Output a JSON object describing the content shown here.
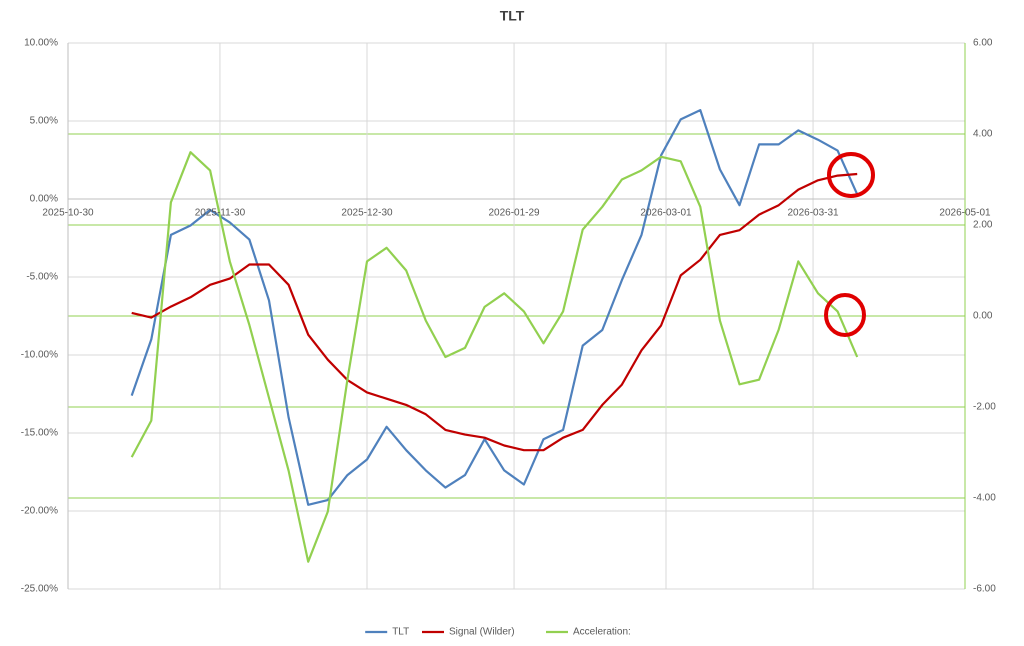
{
  "chart_data": {
    "type": "line",
    "title": "TLT",
    "x": [
      "2025-11-12",
      "2025-11-16",
      "2025-11-20",
      "2025-11-24",
      "2025-11-28",
      "2025-12-02",
      "2025-12-06",
      "2025-12-10",
      "2025-12-14",
      "2025-12-18",
      "2025-12-22",
      "2025-12-26",
      "2025-12-30",
      "2026-01-03",
      "2026-01-07",
      "2026-01-11",
      "2026-01-15",
      "2026-01-19",
      "2026-01-23",
      "2026-01-27",
      "2026-01-31",
      "2026-02-04",
      "2026-02-08",
      "2026-02-12",
      "2026-02-16",
      "2026-02-20",
      "2026-02-24",
      "2026-02-28",
      "2026-03-04",
      "2026-03-08",
      "2026-03-12",
      "2026-03-16",
      "2026-03-20",
      "2026-03-24",
      "2026-03-28",
      "2026-04-01",
      "2026-04-05",
      "2026-04-09"
    ],
    "series": [
      {
        "name": "TLT",
        "color": "#4f81bd",
        "values": [
          -12.6,
          -9,
          -2.3,
          -1.7,
          -0.7,
          -1.5,
          -2.6,
          -6.5,
          -14,
          -19.6,
          -19.3,
          -17.7,
          -16.7,
          -14.6,
          -16.1,
          -17.4,
          -18.5,
          -17.7,
          -15.4,
          -17.4,
          -18.3,
          -15.4,
          -14.8,
          -9.4,
          -8.4,
          -5.2,
          -2.3,
          2.8,
          5.1,
          5.7,
          1.9,
          -0.4,
          3.5,
          3.5,
          4.4,
          3.8,
          3.1,
          0.3
        ]
      },
      {
        "name": "Signal (Wilder)",
        "color": "#c00000",
        "values": [
          -7.3,
          -7.6,
          -6.9,
          -6.3,
          -5.5,
          -5.1,
          -4.2,
          -4.2,
          -5.5,
          -8.7,
          -10.3,
          -11.6,
          -12.4,
          -12.8,
          -13.2,
          -13.8,
          -14.8,
          -15.1,
          -15.3,
          -15.8,
          -16.1,
          -16.1,
          -15.3,
          -14.8,
          -13.2,
          -11.9,
          -9.7,
          -8.1,
          -4.9,
          -3.9,
          -2.3,
          -2,
          -1,
          -0.4,
          0.6,
          1.2,
          1.5,
          1.6
        ]
      },
      {
        "name": "Acceleration:",
        "color": "#92d050",
        "axis": "y2",
        "values": [
          -3.1,
          -2.3,
          2.5,
          3.6,
          3.2,
          1.2,
          -0.2,
          -1.8,
          -3.4,
          -5.4,
          -4.3,
          -1.4,
          1.2,
          1.5,
          1,
          -0.1,
          -0.9,
          -0.7,
          0.2,
          0.5,
          0.1,
          -0.6,
          0.1,
          1.9,
          2.4,
          3,
          3.2,
          3.5,
          3.4,
          2.4,
          -0.1,
          -1.5,
          -1.4,
          -0.3,
          1.2,
          0.5,
          0.1,
          -0.9
        ]
      }
    ],
    "xlim": [
      "2025-10-30",
      "2026-05-01"
    ],
    "xticks": [
      "2025-10-30",
      "2025-11-30",
      "2025-12-30",
      "2026-01-29",
      "2026-03-01",
      "2026-03-31",
      "2026-05-01"
    ],
    "ylim": [
      -25,
      10
    ],
    "yticks": [
      {
        "value": -25,
        "label": "-25.00%"
      },
      {
        "value": -20,
        "label": "-20.00%"
      },
      {
        "value": -15,
        "label": "-15.00%"
      },
      {
        "value": -10,
        "label": "-10.00%"
      },
      {
        "value": -5,
        "label": "-5.00%"
      },
      {
        "value": 0,
        "label": "0.00%"
      },
      {
        "value": 5,
        "label": "5.00%"
      },
      {
        "value": 10,
        "label": "10.00%"
      }
    ],
    "y2lim": [
      -6,
      6
    ],
    "y2ticks": [
      {
        "value": -6,
        "label": "-6.00"
      },
      {
        "value": -4,
        "label": "-4.00"
      },
      {
        "value": -2,
        "label": "-2.00"
      },
      {
        "value": 0,
        "label": "0.00"
      },
      {
        "value": 2,
        "label": "2.00"
      },
      {
        "value": 4,
        "label": "4.00"
      },
      {
        "value": 6,
        "label": "6.00"
      }
    ],
    "grid": true,
    "legend": "bottom"
  }
}
